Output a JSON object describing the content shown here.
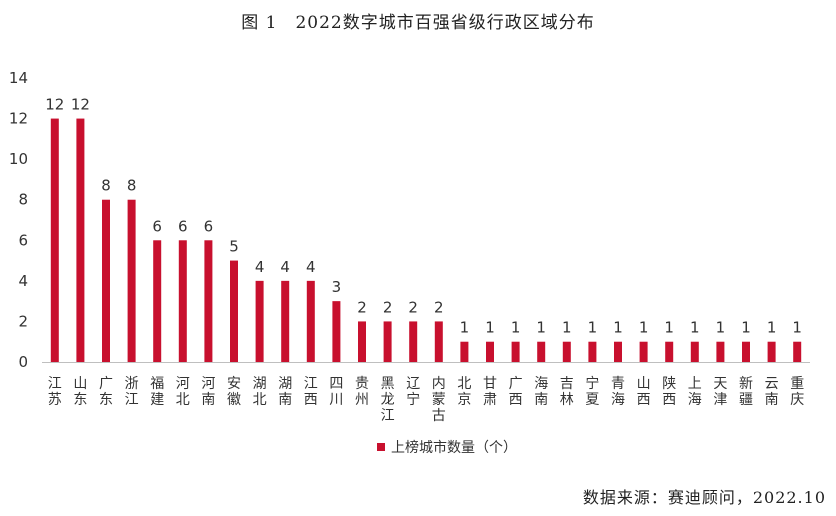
{
  "figure": {
    "title": "图 1　2022数字城市百强省级行政区域分布",
    "source": "数据来源：赛迪顾问，2022.10"
  },
  "chart_data": {
    "type": "bar",
    "title": "图 1　2022数字城市百强省级行政区域分布",
    "xlabel": "",
    "ylabel": "",
    "ylim": [
      0,
      14
    ],
    "yticks": [
      0,
      2,
      4,
      6,
      8,
      10,
      12,
      14
    ],
    "grid": false,
    "legend": "bottom",
    "categories": [
      "江苏",
      "山东",
      "广东",
      "浙江",
      "福建",
      "河北",
      "河南",
      "安徽",
      "湖北",
      "湖南",
      "江西",
      "四川",
      "贵州",
      "黑龙江",
      "辽宁",
      "内蒙古",
      "北京",
      "甘肃",
      "广西",
      "海南",
      "吉林",
      "宁夏",
      "青海",
      "山西",
      "陕西",
      "上海",
      "天津",
      "新疆",
      "云南",
      "重庆"
    ],
    "series": [
      {
        "name": "上榜城市数量（个）",
        "color": "#c8102e",
        "values": [
          12,
          12,
          8,
          8,
          6,
          6,
          6,
          5,
          4,
          4,
          4,
          3,
          2,
          2,
          2,
          2,
          1,
          1,
          1,
          1,
          1,
          1,
          1,
          1,
          1,
          1,
          1,
          1,
          1,
          1
        ]
      }
    ]
  }
}
